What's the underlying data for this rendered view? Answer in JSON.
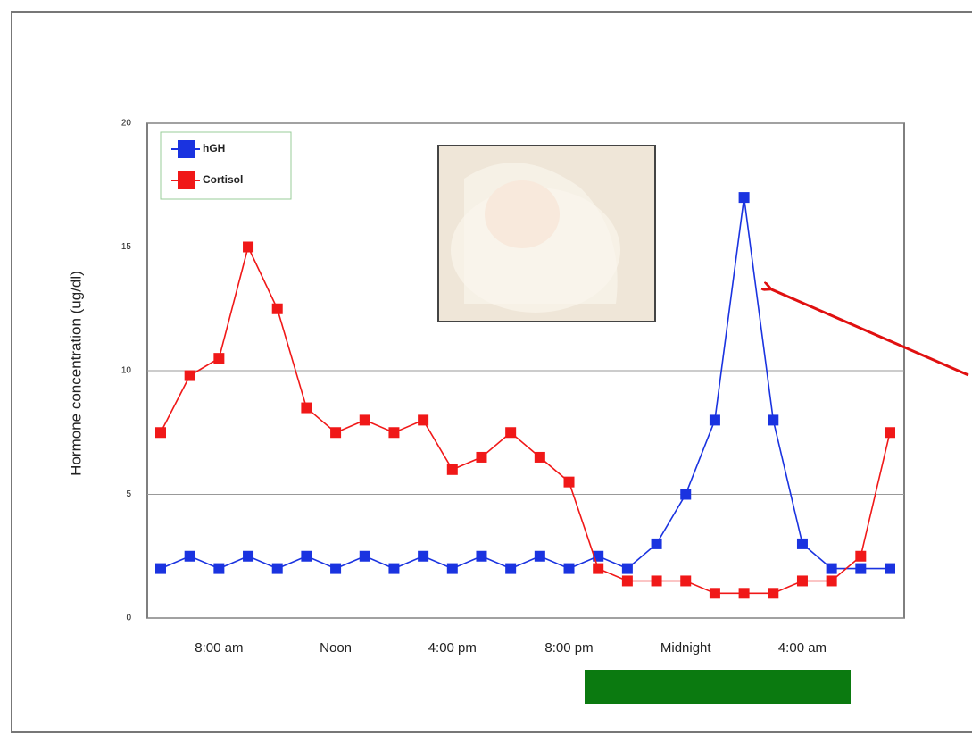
{
  "chart_data": {
    "type": "line",
    "y_label": "Hormone concentration (ug/dl)",
    "categories": [
      null,
      null,
      "8:00 am",
      null,
      null,
      null,
      "Noon",
      null,
      null,
      null,
      "4:00 pm",
      null,
      null,
      null,
      "8:00 pm",
      null,
      null,
      null,
      "Midnight",
      null,
      null,
      null,
      "4:00 am",
      null,
      null,
      null
    ],
    "series": [
      {
        "name": "hGH",
        "color": "#1a33e0",
        "values": [
          2,
          2.5,
          2,
          2.5,
          2,
          2.5,
          2,
          2.5,
          2,
          2.5,
          2,
          2.5,
          2,
          2.5,
          2,
          2.5,
          2,
          3,
          5,
          8,
          17,
          8,
          3,
          2,
          2,
          2
        ]
      },
      {
        "name": "Cortisol",
        "color": "#f01818",
        "values": [
          7.5,
          9.8,
          10.5,
          15,
          12.5,
          8.5,
          7.5,
          8,
          7.5,
          8,
          6,
          6.5,
          7.5,
          6.5,
          5.5,
          2,
          1.5,
          1.5,
          1.5,
          1,
          1,
          1,
          1.5,
          1.5,
          2.5,
          7.5
        ]
      }
    ],
    "ylim": [
      0,
      20
    ],
    "yticks": [
      0,
      5,
      10,
      15,
      20
    ],
    "grid": true,
    "legend": "top-left"
  }
}
